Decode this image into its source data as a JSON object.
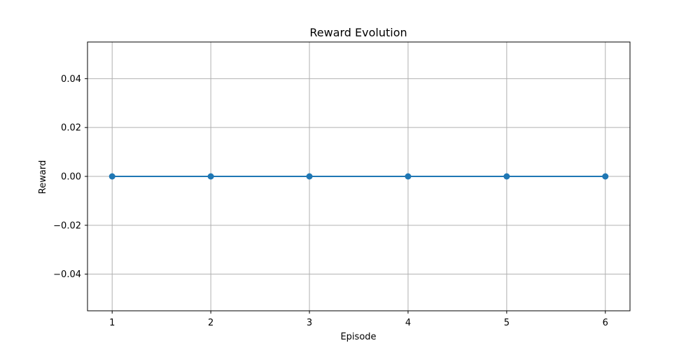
{
  "chart_data": {
    "type": "line",
    "title": "Reward Evolution",
    "xlabel": "Episode",
    "ylabel": "Reward",
    "x": [
      1,
      2,
      3,
      4,
      5,
      6
    ],
    "series": [
      {
        "values": [
          0,
          0,
          0,
          0,
          0,
          0
        ],
        "color": "#1f77b4",
        "marker": "circle"
      }
    ],
    "xlim": [
      0.75,
      6.25
    ],
    "ylim": [
      -0.055,
      0.055
    ],
    "xticks": [
      1,
      2,
      3,
      4,
      5,
      6
    ],
    "xtick_labels": [
      "1",
      "2",
      "3",
      "4",
      "5",
      "6"
    ],
    "yticks": [
      -0.04,
      -0.02,
      0.0,
      0.02,
      0.04
    ],
    "ytick_labels": [
      "−0.04",
      "−0.02",
      "0.00",
      "0.02",
      "0.04"
    ],
    "grid": true,
    "grid_color": "#b0b0b0"
  }
}
